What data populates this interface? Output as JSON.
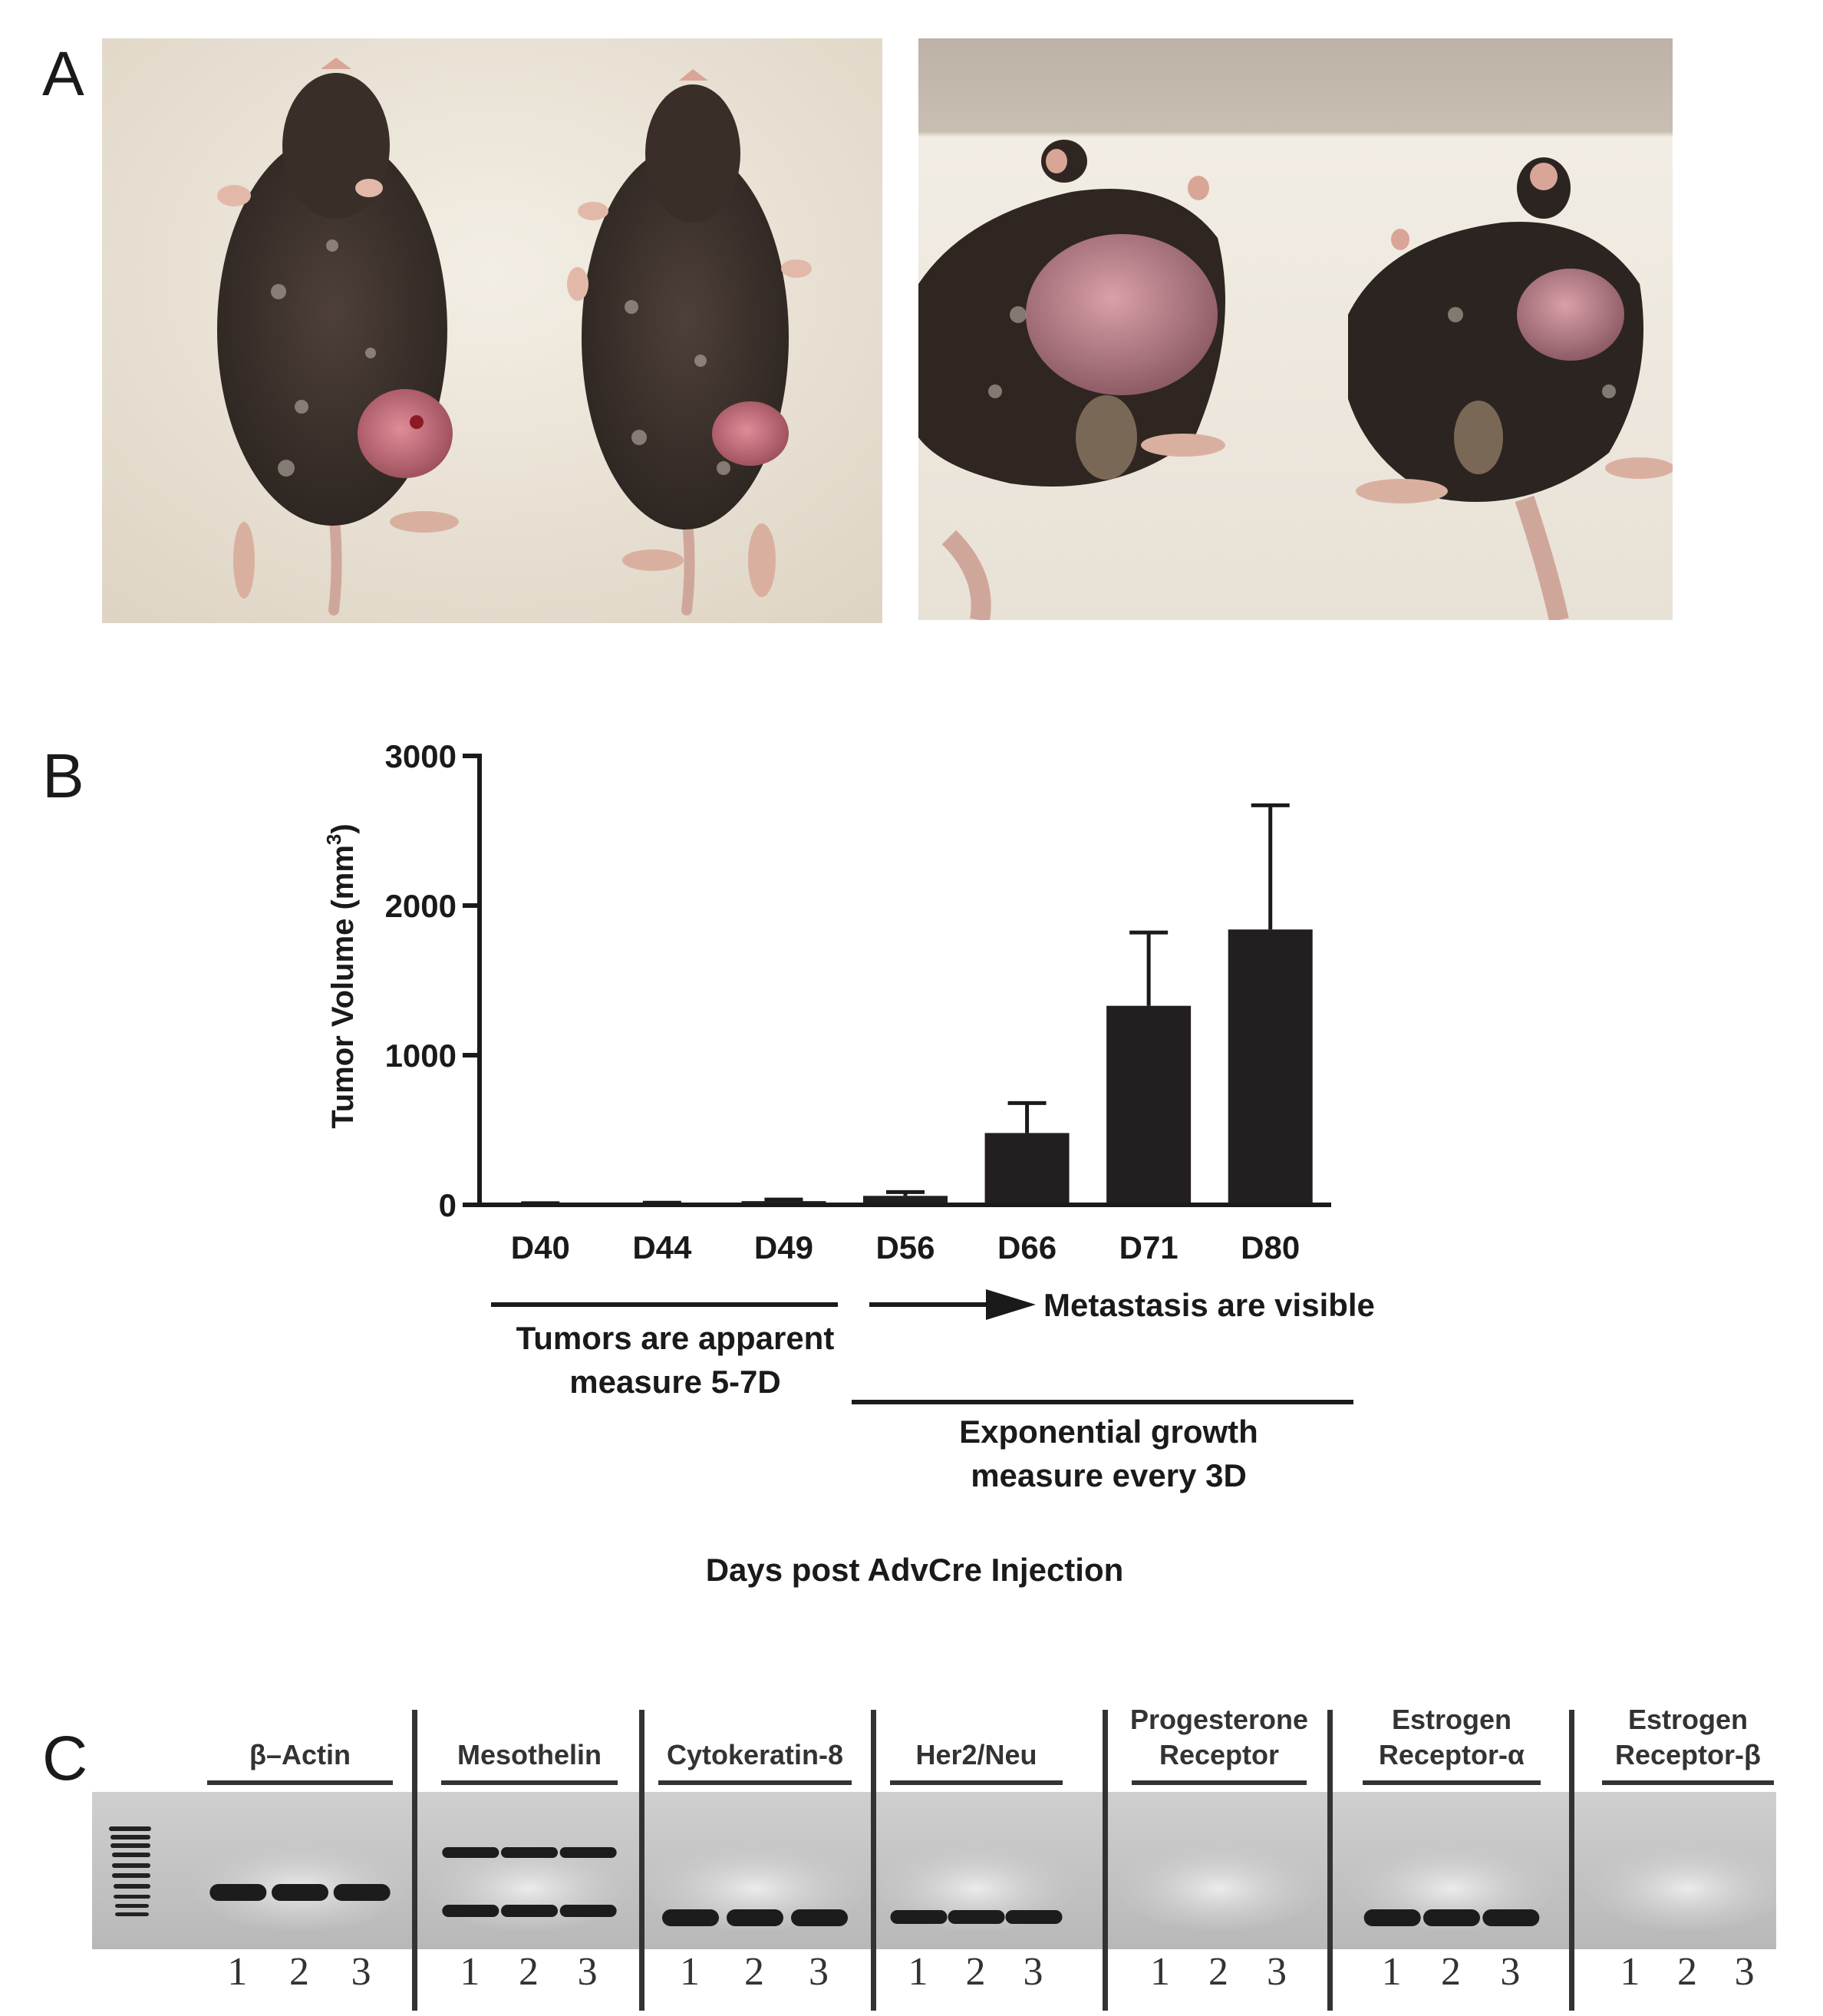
{
  "panels": {
    "a": "A",
    "b": "B",
    "c": "C"
  },
  "panel_a": {
    "photos": [
      "mice-dorsal-photo",
      "mice-rear-photo"
    ]
  },
  "chart_data": {
    "type": "bar",
    "categories": [
      "D40",
      "D44",
      "D49",
      "D56",
      "D66",
      "D71",
      "D80"
    ],
    "values": [
      8,
      10,
      25,
      60,
      480,
      1330,
      1840
    ],
    "errors": [
      3,
      4,
      10,
      25,
      200,
      490,
      830
    ],
    "ylabel": "Tumor Volume (mm",
    "ylabel_sup": "3",
    "ylabel_end": ")",
    "xlabel": "Days post AdvCre Injection",
    "ylim": [
      0,
      3000
    ],
    "yticks": [
      0,
      1000,
      2000,
      3000
    ],
    "bar_color": "#231f20",
    "annotations": {
      "phase1_line1": "Tumors are apparent",
      "phase1_line2": "measure 5-7D",
      "arrow_label": "Metastasis are visible",
      "phase2_line1": "Exponential growth",
      "phase2_line2": "measure every 3D"
    }
  },
  "gel": {
    "background": "#c4c4c4",
    "band_color": "#1c1c1c",
    "headers": [
      {
        "line1": "",
        "line2": "β–Actin"
      },
      {
        "line1": "",
        "line2": "Mesothelin"
      },
      {
        "line1": "",
        "line2": "Cytokeratin-8"
      },
      {
        "line1": "",
        "line2": "Her2/Neu"
      },
      {
        "line1": "Progesterone",
        "line2": "Receptor"
      },
      {
        "line1": "Estrogen",
        "line2": "Receptor-α"
      },
      {
        "line1": "Estrogen",
        "line2": "Receptor-β"
      }
    ],
    "lanes": [
      "1",
      "2",
      "3"
    ]
  }
}
